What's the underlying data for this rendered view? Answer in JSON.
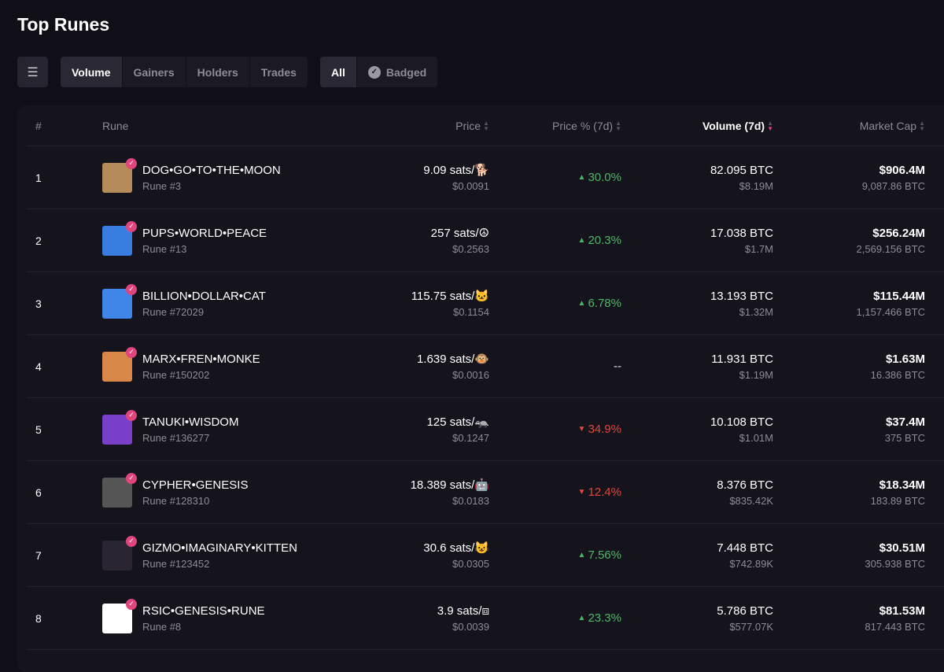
{
  "title": "Top Runes",
  "tabs": [
    "Volume",
    "Gainers",
    "Holders",
    "Trades"
  ],
  "filters": [
    "All",
    "Badged"
  ],
  "columns": {
    "num": "#",
    "rune": "Rune",
    "price": "Price",
    "pct": "Price % (7d)",
    "volume": "Volume (7d)",
    "mcap": "Market Cap"
  },
  "colors": {
    "up": "#4cb866",
    "down": "#e5453a",
    "badge": "#e0457b"
  },
  "rows": [
    {
      "rank": "1",
      "name": "DOG•GO•TO•THE•MOON",
      "id": "Rune #3",
      "price": "9.09 sats/🐕",
      "usd": "$0.0091",
      "pct": "30.0%",
      "dir": "up",
      "vol": "82.095 BTC",
      "vol_usd": "$8.19M",
      "mcap": "$906.4M",
      "mcap_btc": "9,087.86 BTC",
      "color": "#b58b5a"
    },
    {
      "rank": "2",
      "name": "PUPS•WORLD•PEACE",
      "id": "Rune #13",
      "price": "257 sats/☮",
      "usd": "$0.2563",
      "pct": "20.3%",
      "dir": "up",
      "vol": "17.038 BTC",
      "vol_usd": "$1.7M",
      "mcap": "$256.24M",
      "mcap_btc": "2,569.156 BTC",
      "color": "#3a7de0"
    },
    {
      "rank": "3",
      "name": "BILLION•DOLLAR•CAT",
      "id": "Rune #72029",
      "price": "115.75 sats/🐱",
      "usd": "$0.1154",
      "pct": "6.78%",
      "dir": "up",
      "vol": "13.193 BTC",
      "vol_usd": "$1.32M",
      "mcap": "$115.44M",
      "mcap_btc": "1,157.466 BTC",
      "color": "#3f86e8"
    },
    {
      "rank": "4",
      "name": "MARX•FREN•MONKE",
      "id": "Rune #150202",
      "price": "1.639 sats/🐵",
      "usd": "$0.0016",
      "pct": "--",
      "dir": "flat",
      "vol": "11.931 BTC",
      "vol_usd": "$1.19M",
      "mcap": "$1.63M",
      "mcap_btc": "16.386 BTC",
      "color": "#d9884a"
    },
    {
      "rank": "5",
      "name": "TANUKI•WISDOM",
      "id": "Rune #136277",
      "price": "125 sats/🦡",
      "usd": "$0.1247",
      "pct": "34.9%",
      "dir": "dn",
      "vol": "10.108 BTC",
      "vol_usd": "$1.01M",
      "mcap": "$37.4M",
      "mcap_btc": "375 BTC",
      "color": "#7a3fc9"
    },
    {
      "rank": "6",
      "name": "CYPHER•GENESIS",
      "id": "Rune #128310",
      "price": "18.389 sats/🤖",
      "usd": "$0.0183",
      "pct": "12.4%",
      "dir": "dn",
      "vol": "8.376 BTC",
      "vol_usd": "$835.42K",
      "mcap": "$18.34M",
      "mcap_btc": "183.89 BTC",
      "color": "#555555"
    },
    {
      "rank": "7",
      "name": "GIZMO•IMAGINARY•KITTEN",
      "id": "Rune #123452",
      "price": "30.6 sats/😺",
      "usd": "$0.0305",
      "pct": "7.56%",
      "dir": "up",
      "vol": "7.448 BTC",
      "vol_usd": "$742.89K",
      "mcap": "$30.51M",
      "mcap_btc": "305.938 BTC",
      "color": "#2a2530"
    },
    {
      "rank": "8",
      "name": "RSIC•GENESIS•RUNE",
      "id": "Rune #8",
      "price": "3.9 sats/⧈",
      "usd": "$0.0039",
      "pct": "23.3%",
      "dir": "up",
      "vol": "5.786 BTC",
      "vol_usd": "$577.07K",
      "mcap": "$81.53M",
      "mcap_btc": "817.443 BTC",
      "color": "#ffffff"
    }
  ]
}
